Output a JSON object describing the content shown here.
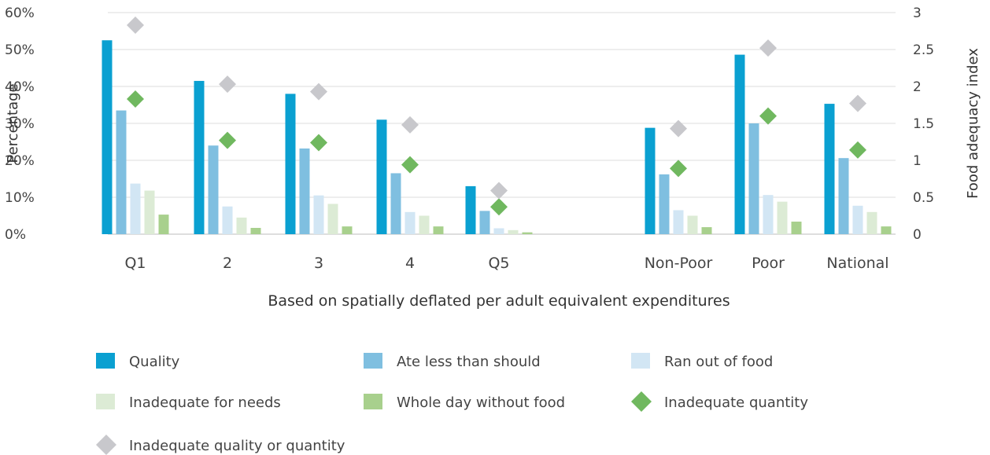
{
  "chart_data": {
    "type": "bar",
    "xlabel": "Based on spatially deflated per adult equivalent expenditures",
    "ylabel": "Percentage",
    "y2label": "Food adequacy index",
    "categories": [
      "Q1",
      "2",
      "3",
      "4",
      "Q5",
      "Non-Poor",
      "Poor",
      "National"
    ],
    "ylim": [
      0,
      60
    ],
    "y2lim": [
      0,
      3
    ],
    "yticks": [
      "0%",
      "10%",
      "20%",
      "30%",
      "40%",
      "50%",
      "60%"
    ],
    "y2ticks": [
      "0",
      "0.5",
      "1",
      "1.5",
      "2",
      "2.5",
      "3"
    ],
    "grid": true,
    "legend_position": "bottom",
    "series": [
      {
        "name": "Quality",
        "type": "bar",
        "axis": "left",
        "color": "#0aa0d1",
        "values": [
          52.5,
          41.5,
          38,
          31,
          13,
          28.8,
          48.6,
          35.3
        ]
      },
      {
        "name": "Ate less than should",
        "type": "bar",
        "axis": "left",
        "color": "#7fbfe0",
        "values": [
          33.5,
          24,
          23.2,
          16.5,
          6.3,
          16.2,
          30,
          20.6
        ]
      },
      {
        "name": "Ran out of food",
        "type": "bar",
        "axis": "left",
        "color": "#d2e6f4",
        "values": [
          13.7,
          7.5,
          10.5,
          6,
          1.6,
          6.5,
          10.6,
          7.7
        ]
      },
      {
        "name": "Inadequate for needs",
        "type": "bar",
        "axis": "left",
        "color": "#dcebd5",
        "values": [
          11.8,
          4.5,
          8.2,
          5,
          1.1,
          5,
          8.8,
          6
        ]
      },
      {
        "name": "Whole day without food",
        "type": "bar",
        "axis": "left",
        "color": "#a8d08d",
        "values": [
          5.3,
          1.7,
          2.1,
          2.1,
          0.5,
          1.9,
          3.4,
          2.1
        ]
      },
      {
        "name": "Inadequate quantity",
        "type": "marker",
        "axis": "right",
        "color": "#70b85f",
        "values": [
          1.83,
          1.27,
          1.24,
          0.94,
          0.37,
          0.89,
          1.6,
          1.14
        ]
      },
      {
        "name": "Inadequate quality or quantity",
        "type": "marker",
        "axis": "right",
        "color": "#c8c8cc",
        "values": [
          2.83,
          2.03,
          1.93,
          1.48,
          0.59,
          1.43,
          2.52,
          1.77
        ]
      }
    ]
  }
}
